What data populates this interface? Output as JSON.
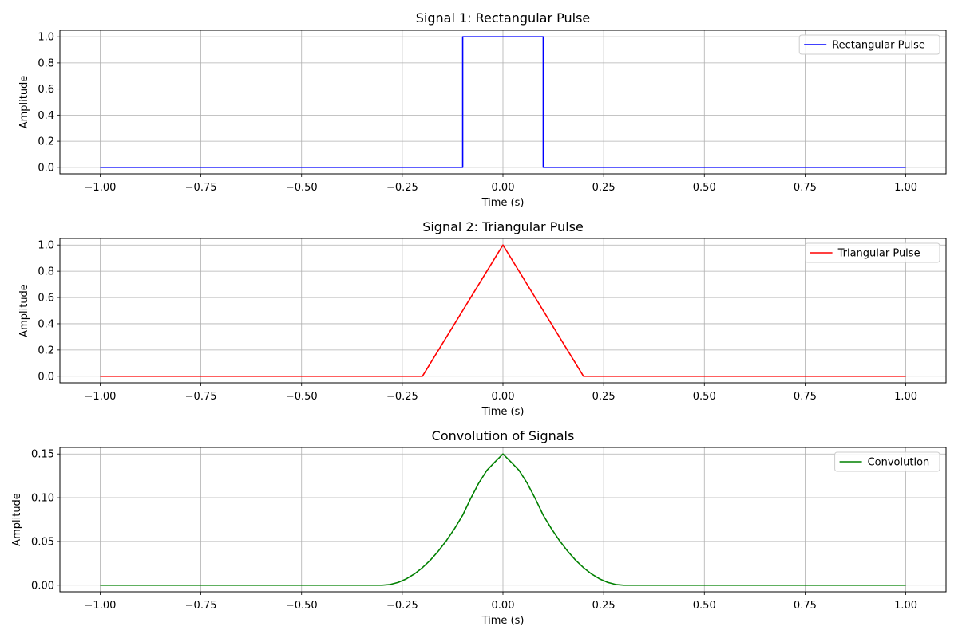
{
  "chart_data": [
    {
      "type": "line",
      "title": "Signal 1: Rectangular Pulse",
      "xlabel": "Time (s)",
      "ylabel": "Amplitude",
      "xlim": [
        -1.1,
        1.1
      ],
      "ylim": [
        -0.05,
        1.05
      ],
      "x_ticks": [
        -1.0,
        -0.75,
        -0.5,
        -0.25,
        0.0,
        0.25,
        0.5,
        0.75,
        1.0
      ],
      "x_tick_labels": [
        "−1.00",
        "−0.75",
        "−0.50",
        "−0.25",
        "0.00",
        "0.25",
        "0.50",
        "0.75",
        "1.00"
      ],
      "y_ticks": [
        0.0,
        0.2,
        0.4,
        0.6,
        0.8,
        1.0
      ],
      "y_tick_labels": [
        "0.0",
        "0.2",
        "0.4",
        "0.6",
        "0.8",
        "1.0"
      ],
      "grid": true,
      "legend_position": "top-right",
      "series": [
        {
          "name": "Rectangular Pulse",
          "color": "#0000ff",
          "x": [
            -1.0,
            -0.1,
            -0.1,
            0.1,
            0.1,
            1.0
          ],
          "y": [
            0,
            0,
            1,
            1,
            0,
            0
          ]
        }
      ]
    },
    {
      "type": "line",
      "title": "Signal 2: Triangular Pulse",
      "xlabel": "Time (s)",
      "ylabel": "Amplitude",
      "xlim": [
        -1.1,
        1.1
      ],
      "ylim": [
        -0.05,
        1.05
      ],
      "x_ticks": [
        -1.0,
        -0.75,
        -0.5,
        -0.25,
        0.0,
        0.25,
        0.5,
        0.75,
        1.0
      ],
      "x_tick_labels": [
        "−1.00",
        "−0.75",
        "−0.50",
        "−0.25",
        "0.00",
        "0.25",
        "0.50",
        "0.75",
        "1.00"
      ],
      "y_ticks": [
        0.0,
        0.2,
        0.4,
        0.6,
        0.8,
        1.0
      ],
      "y_tick_labels": [
        "0.0",
        "0.2",
        "0.4",
        "0.6",
        "0.8",
        "1.0"
      ],
      "grid": true,
      "legend_position": "top-right",
      "series": [
        {
          "name": "Triangular Pulse",
          "color": "#ff0000",
          "x": [
            -1.0,
            -0.2,
            0.0,
            0.2,
            1.0
          ],
          "y": [
            0,
            0,
            1,
            0,
            0
          ]
        }
      ]
    },
    {
      "type": "line",
      "title": "Convolution of Signals",
      "xlabel": "Time (s)",
      "ylabel": "Amplitude",
      "xlim": [
        -1.1,
        1.1
      ],
      "ylim": [
        -0.0075,
        0.1575
      ],
      "x_ticks": [
        -1.0,
        -0.75,
        -0.5,
        -0.25,
        0.0,
        0.25,
        0.5,
        0.75,
        1.0
      ],
      "x_tick_labels": [
        "−1.00",
        "−0.75",
        "−0.50",
        "−0.25",
        "0.00",
        "0.25",
        "0.50",
        "0.75",
        "1.00"
      ],
      "y_ticks": [
        0.0,
        0.05,
        0.1,
        0.15
      ],
      "y_tick_labels": [
        "0.00",
        "0.05",
        "0.10",
        "0.15"
      ],
      "grid": true,
      "legend_position": "top-right",
      "series": [
        {
          "name": "Convolution",
          "color": "#008000",
          "x": [
            -1.0,
            -0.3,
            -0.28,
            -0.26,
            -0.24,
            -0.22,
            -0.2,
            -0.18,
            -0.16,
            -0.14,
            -0.12,
            -0.1,
            -0.08,
            -0.06,
            -0.04,
            -0.02,
            0.0,
            0.02,
            0.04,
            0.06,
            0.08,
            0.1,
            0.12,
            0.14,
            0.16,
            0.18,
            0.2,
            0.22,
            0.24,
            0.26,
            0.28,
            0.3,
            1.0
          ],
          "y": [
            0,
            0,
            0.0008,
            0.0032,
            0.0072,
            0.0128,
            0.02,
            0.0288,
            0.0392,
            0.0512,
            0.0648,
            0.08,
            0.0992,
            0.1168,
            0.1312,
            0.1408,
            0.15,
            0.1408,
            0.1312,
            0.1168,
            0.0992,
            0.08,
            0.0648,
            0.0512,
            0.0392,
            0.0288,
            0.02,
            0.0128,
            0.0072,
            0.0032,
            0.0008,
            0,
            0
          ]
        }
      ]
    }
  ]
}
